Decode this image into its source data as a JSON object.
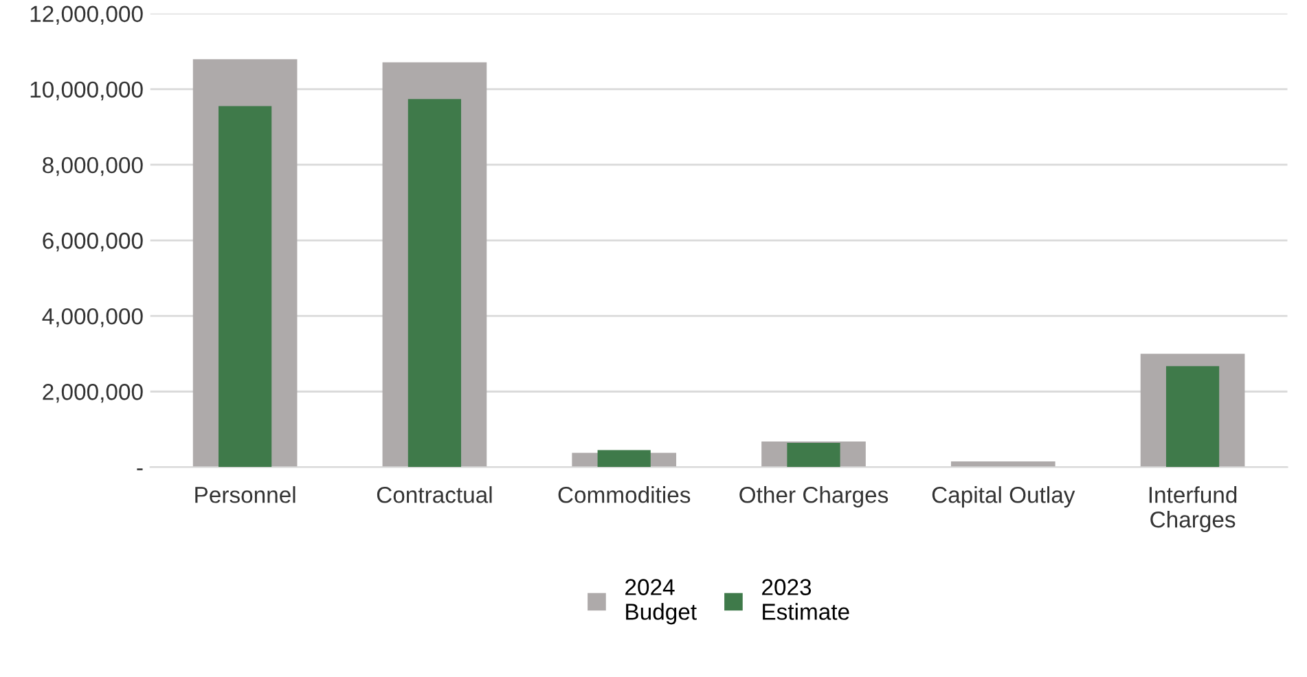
{
  "chart_data": {
    "type": "bar",
    "categories": [
      "Personnel",
      "Contractual",
      "Commodities",
      "Other Charges",
      "Capital Outlay",
      "Interfund\nCharges"
    ],
    "series": [
      {
        "name": "2024\nBudget",
        "color": "#aeaaaa",
        "values": [
          10790000,
          10710000,
          380000,
          680000,
          150000,
          3000000
        ]
      },
      {
        "name": "2023\nEstimate",
        "color": "#3f7a4a",
        "values": [
          9550000,
          9740000,
          450000,
          640000,
          0,
          2670000
        ]
      }
    ],
    "ylim": [
      0,
      12000000
    ],
    "yticks": [
      {
        "value": 0,
        "label": "-"
      },
      {
        "value": 2000000,
        "label": "2,000,000"
      },
      {
        "value": 4000000,
        "label": "4,000,000"
      },
      {
        "value": 6000000,
        "label": "6,000,000"
      },
      {
        "value": 8000000,
        "label": "8,000,000"
      },
      {
        "value": 10000000,
        "label": "10,000,000"
      },
      {
        "value": 12000000,
        "label": "12,000,000"
      }
    ],
    "grid": "y",
    "legend": "bottom"
  }
}
